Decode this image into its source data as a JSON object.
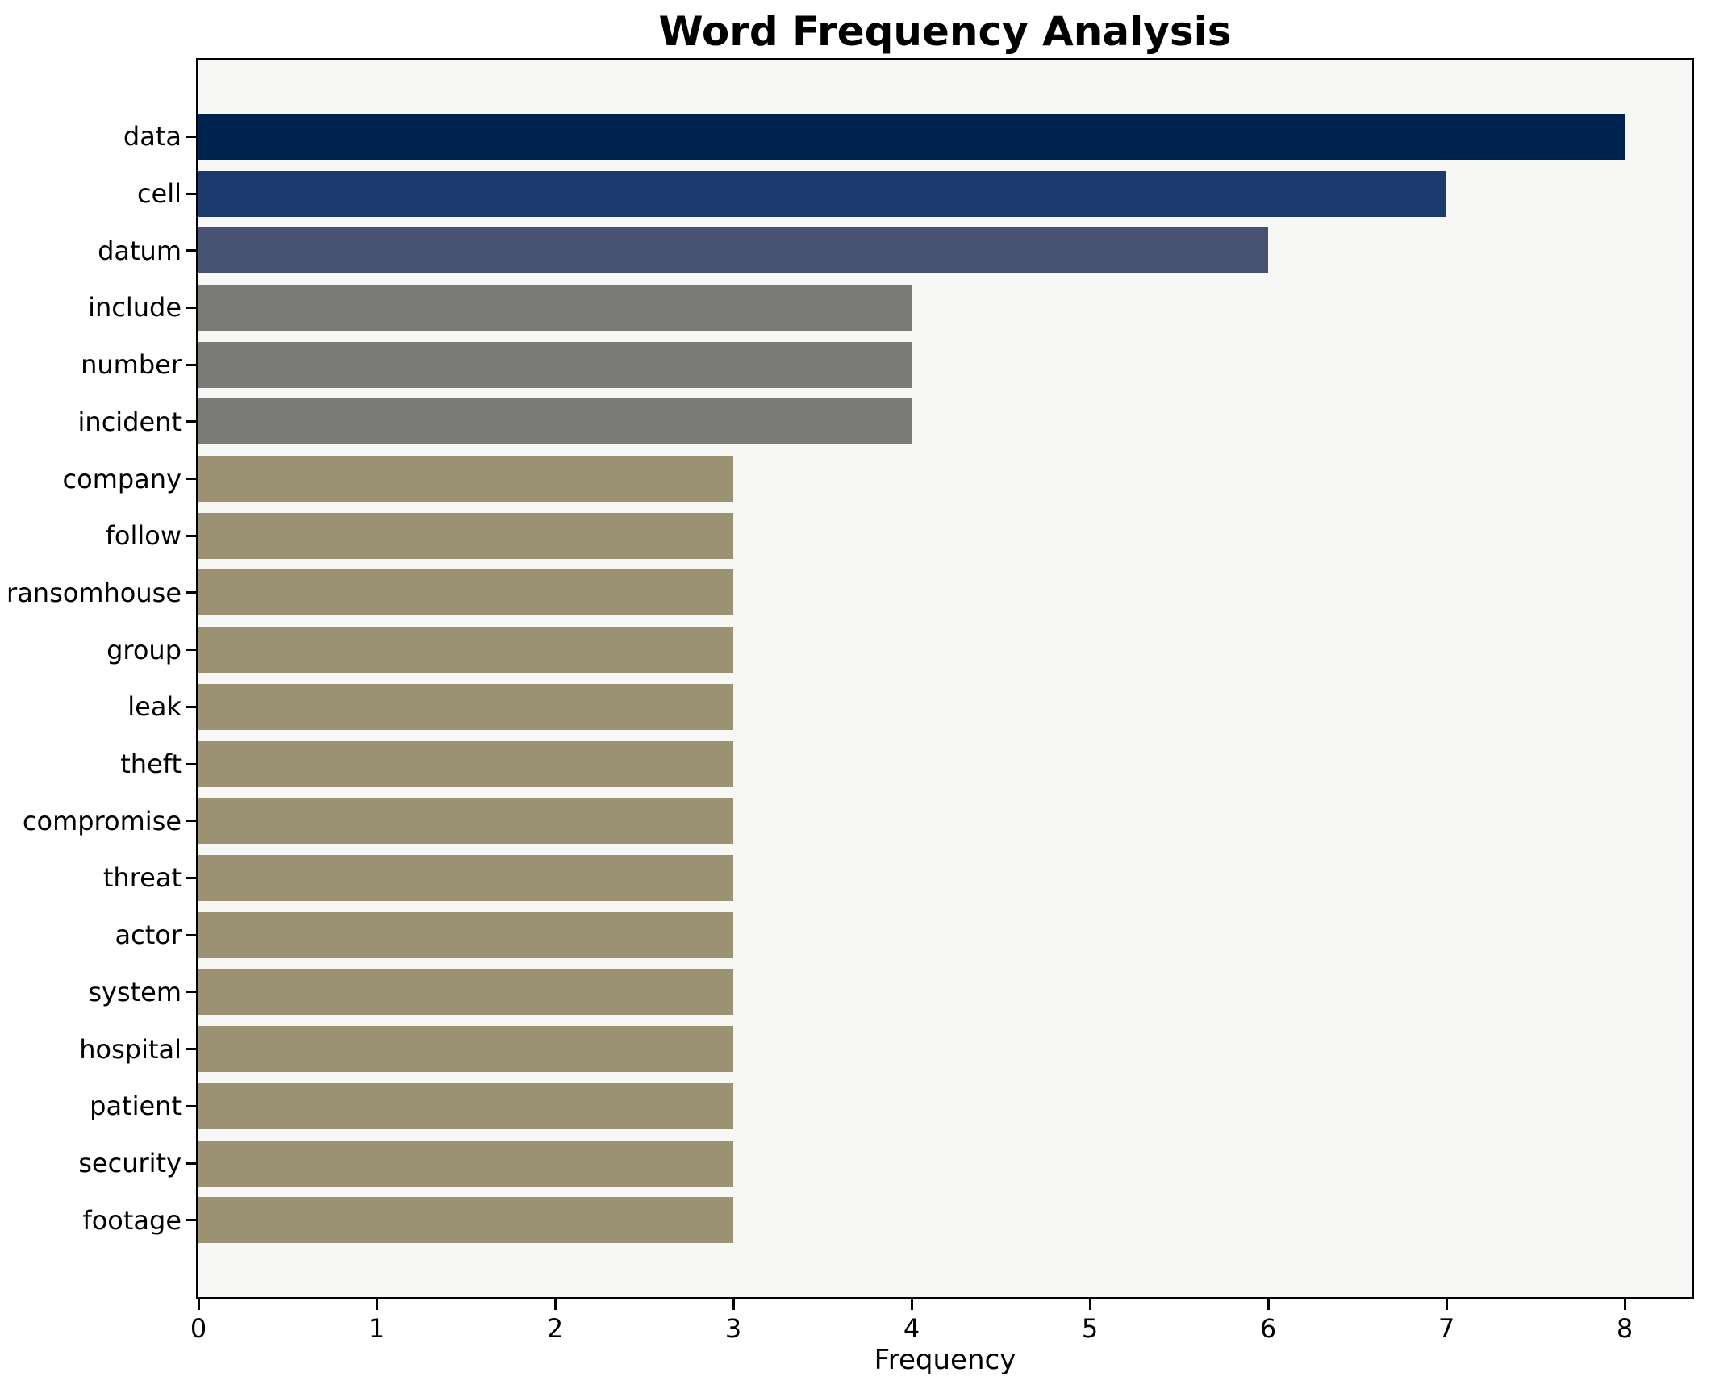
{
  "title": "Word Frequency Analysis",
  "chart_data": {
    "type": "bar",
    "orientation": "horizontal",
    "title": "Word Frequency Analysis",
    "xlabel": "Frequency",
    "ylabel": "",
    "categories": [
      "data",
      "cell",
      "datum",
      "include",
      "number",
      "incident",
      "company",
      "follow",
      "ransomhouse",
      "group",
      "leak",
      "theft",
      "compromise",
      "threat",
      "actor",
      "system",
      "hospital",
      "patient",
      "security",
      "footage"
    ],
    "values": [
      8,
      7,
      6,
      4,
      4,
      4,
      3,
      3,
      3,
      3,
      3,
      3,
      3,
      3,
      3,
      3,
      3,
      3,
      3,
      3
    ],
    "bar_colors": [
      "#00224e",
      "#1c3a6e",
      "#475171",
      "#7a7a77",
      "#7a7a77",
      "#7a7a77",
      "#9a9272",
      "#9a9272",
      "#9a9272",
      "#9a9272",
      "#9a9272",
      "#9a9272",
      "#9a9272",
      "#9a9272",
      "#9a9272",
      "#9a9272",
      "#9a9272",
      "#9a9272",
      "#9a9272",
      "#9a9272"
    ],
    "x_ticks": [
      0,
      1,
      2,
      3,
      4,
      5,
      6,
      7,
      8
    ],
    "xlim": [
      0,
      8.38
    ],
    "grid": false,
    "legend": false,
    "plot_background": "#f7f7f5",
    "figure_background": "#ffffff",
    "spine_color": "#000000"
  }
}
